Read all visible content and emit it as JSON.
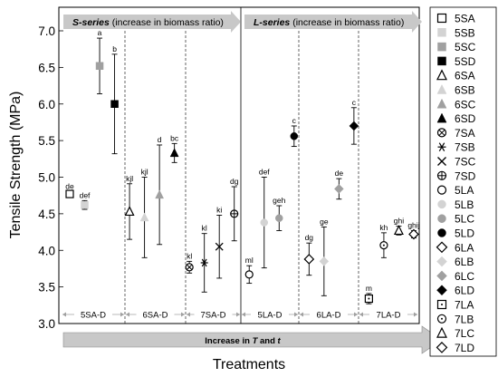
{
  "chart_data": {
    "type": "scatter",
    "xlabel": "Treatments",
    "ylabel": "Tensile Strength (MPa)",
    "ylim": [
      3.0,
      7.0
    ],
    "yticks": [
      "3.0",
      "3.5",
      "4.0",
      "4.5",
      "5.0",
      "5.5",
      "6.0",
      "6.5",
      "7.0"
    ],
    "grid": false,
    "legend_position": "right",
    "top_arrows": [
      {
        "prefix": "S-series",
        "suffix": " (increase in biomass ratio)"
      },
      {
        "prefix": "L-series",
        "suffix": " (increase in biomass ratio)"
      }
    ],
    "groups": [
      "5SA-D",
      "6SA-D",
      "7SA-D",
      "5LA-D",
      "6LA-D",
      "7LA-D"
    ],
    "bottom_arrow_label": {
      "a": "Increase in ",
      "T": "T",
      "b": " and ",
      "t": "t"
    },
    "series": [
      {
        "name": "5SA",
        "marker": "square-open",
        "color": "#000000",
        "x": 1,
        "y": 4.77,
        "err": 0.03,
        "label": "de"
      },
      {
        "name": "5SB",
        "marker": "square-filled",
        "color": "#d3d3d3",
        "x": 2,
        "y": 4.62,
        "err": 0.06,
        "label": "def"
      },
      {
        "name": "5SC",
        "marker": "square-filled",
        "color": "#a0a0a0",
        "x": 3,
        "y": 6.52,
        "err": 0.38,
        "label": "a"
      },
      {
        "name": "5SD",
        "marker": "square-filled",
        "color": "#000000",
        "x": 4,
        "y": 6.0,
        "err": 0.68,
        "label": "b"
      },
      {
        "name": "6SA",
        "marker": "triangle-open",
        "color": "#000000",
        "x": 5,
        "y": 4.53,
        "err": 0.38,
        "label": "kjl"
      },
      {
        "name": "6SB",
        "marker": "triangle-filled",
        "color": "#d3d3d3",
        "x": 6,
        "y": 4.45,
        "err": 0.55,
        "label": "kjl"
      },
      {
        "name": "6SC",
        "marker": "triangle-filled",
        "color": "#a0a0a0",
        "x": 7,
        "y": 4.76,
        "err": 0.68,
        "label": "d"
      },
      {
        "name": "6SD",
        "marker": "triangle-filled",
        "color": "#000000",
        "x": 8,
        "y": 5.33,
        "err": 0.13,
        "label": "bc"
      },
      {
        "name": "7SA",
        "marker": "crossed-circle",
        "color": "#000000",
        "x": 9,
        "y": 3.77,
        "err": 0.08,
        "label": "kl"
      },
      {
        "name": "7SB",
        "marker": "asterisk",
        "color": "#000000",
        "x": 10,
        "y": 3.83,
        "err": 0.4,
        "label": "kl"
      },
      {
        "name": "7SC",
        "marker": "x",
        "color": "#000000",
        "x": 11,
        "y": 4.05,
        "err": 0.43,
        "label": "ki"
      },
      {
        "name": "7SD",
        "marker": "circle-cross",
        "color": "#000000",
        "x": 12,
        "y": 4.5,
        "err": 0.37,
        "label": "dg"
      },
      {
        "name": "5LA",
        "marker": "circle-open",
        "color": "#000000",
        "x": 13,
        "y": 3.67,
        "err": 0.12,
        "label": "ml"
      },
      {
        "name": "5LB",
        "marker": "circle-filled",
        "color": "#d3d3d3",
        "x": 14,
        "y": 4.38,
        "err": 0.62,
        "label": "def"
      },
      {
        "name": "5LC",
        "marker": "circle-filled",
        "color": "#a0a0a0",
        "x": 15,
        "y": 4.44,
        "err": 0.17,
        "label": "geh"
      },
      {
        "name": "5LD",
        "marker": "circle-filled",
        "color": "#000000",
        "x": 16,
        "y": 5.56,
        "err": 0.14,
        "label": "c"
      },
      {
        "name": "6LA",
        "marker": "diamond-open",
        "color": "#000000",
        "x": 17,
        "y": 3.88,
        "err": 0.22,
        "label": "dg"
      },
      {
        "name": "6LB",
        "marker": "diamond-filled",
        "color": "#d3d3d3",
        "x": 18,
        "y": 3.85,
        "err": 0.47,
        "label": "ge"
      },
      {
        "name": "6LC",
        "marker": "diamond-filled",
        "color": "#a0a0a0",
        "x": 19,
        "y": 4.84,
        "err": 0.14,
        "label": "de"
      },
      {
        "name": "6LD",
        "marker": "diamond-filled",
        "color": "#000000",
        "x": 20,
        "y": 5.7,
        "err": 0.25,
        "label": "c"
      },
      {
        "name": "7LA",
        "marker": "square-dot",
        "color": "#000000",
        "x": 21,
        "y": 3.34,
        "err": 0.07,
        "label": "m"
      },
      {
        "name": "7LB",
        "marker": "circle-dot",
        "color": "#000000",
        "x": 22,
        "y": 4.07,
        "err": 0.17,
        "label": "kh"
      },
      {
        "name": "7LC",
        "marker": "triangle-open",
        "color": "#000000",
        "x": 23,
        "y": 4.27,
        "err": 0.06,
        "label": "ghi"
      },
      {
        "name": "7LD",
        "marker": "diamond-open",
        "color": "#000000",
        "x": 24,
        "y": 4.22,
        "err": 0.05,
        "label": "ghij"
      }
    ]
  }
}
